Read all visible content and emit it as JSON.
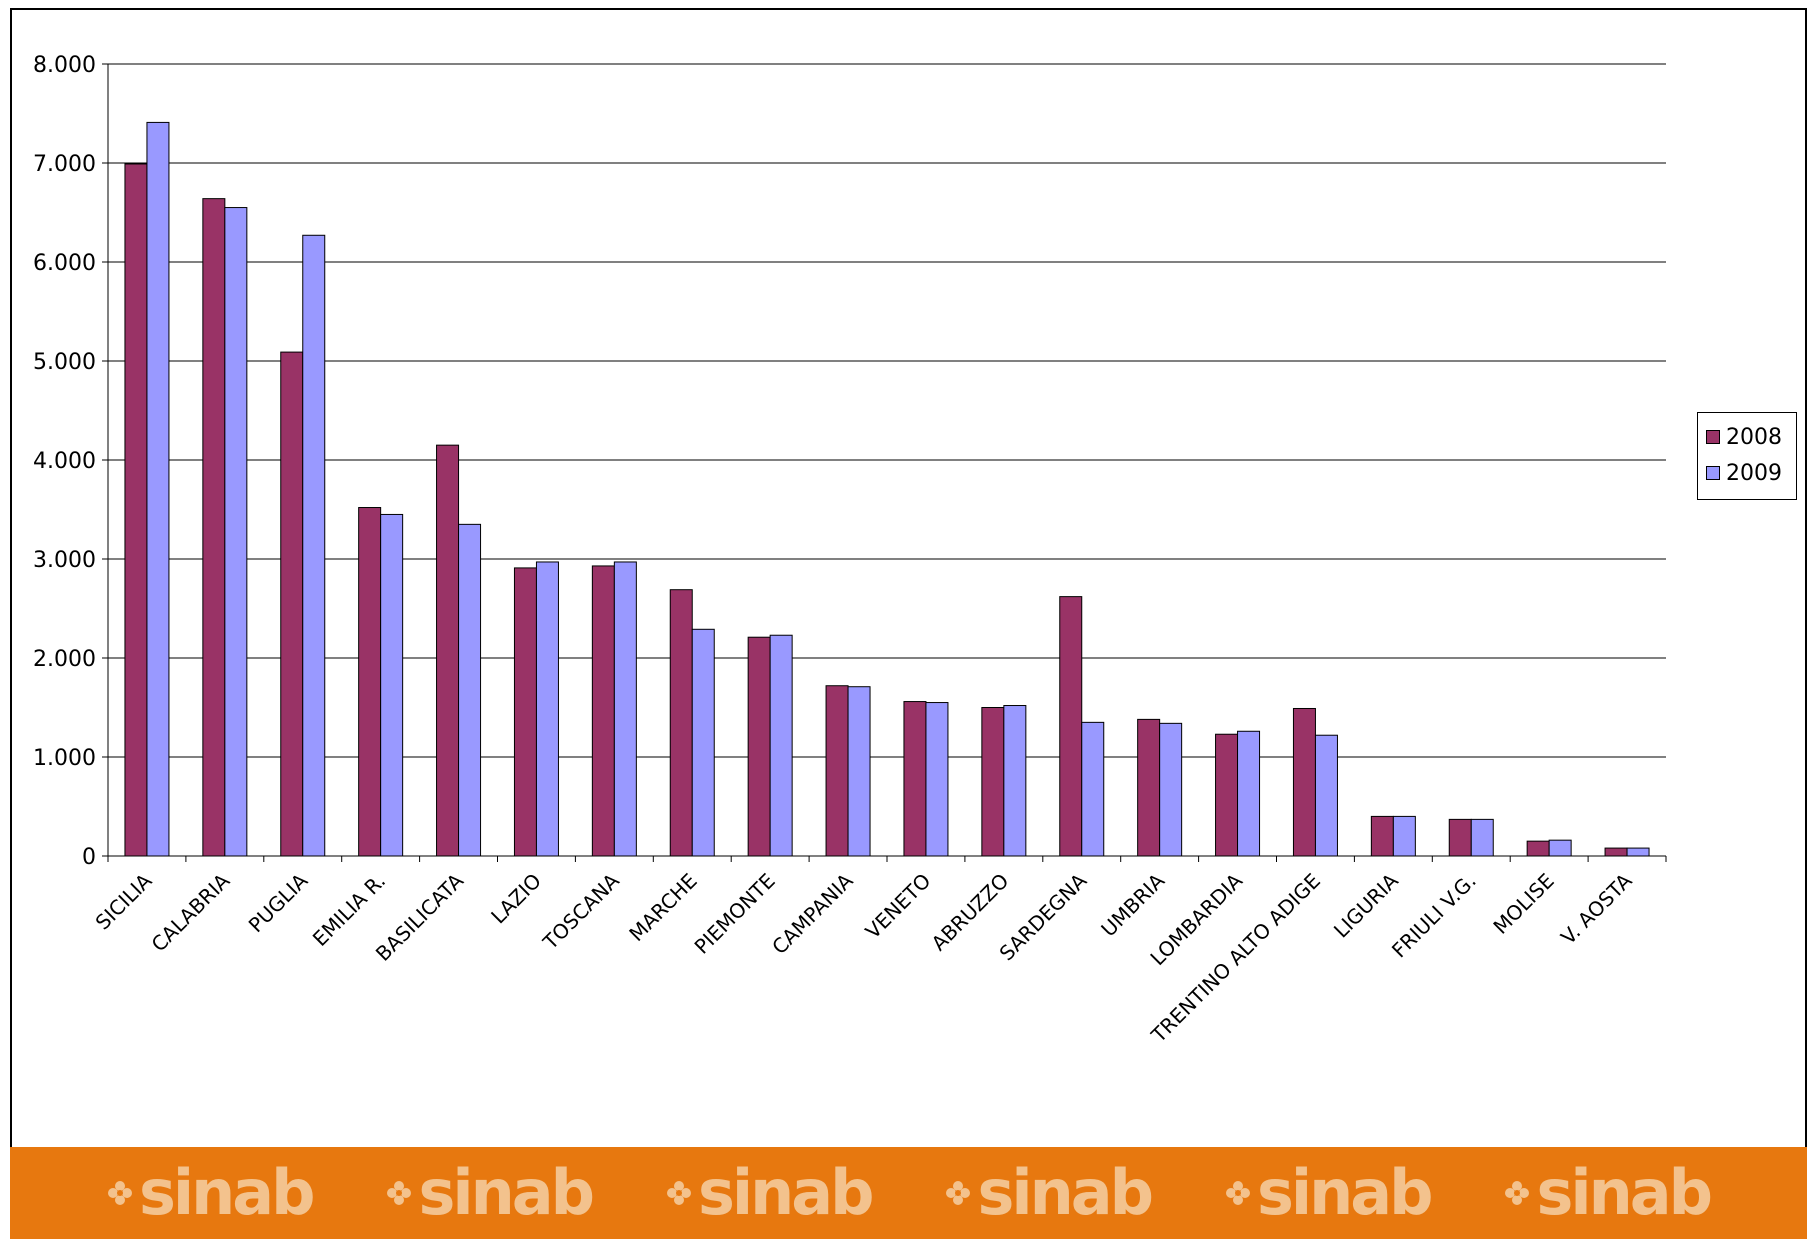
{
  "chart_data": {
    "type": "bar",
    "title": "",
    "xlabel": "",
    "ylabel": "",
    "ylim": [
      0,
      8000
    ],
    "yticks": [
      0,
      1000,
      2000,
      3000,
      4000,
      5000,
      6000,
      7000,
      8000
    ],
    "ytick_labels": [
      "0",
      "1.000",
      "2.000",
      "3.000",
      "4.000",
      "5.000",
      "6.000",
      "7.000",
      "8.000"
    ],
    "grid": "horizontal",
    "legend_position": "right",
    "categories": [
      "SICILIA",
      "CALABRIA",
      "PUGLIA",
      "EMILIA R.",
      "BASILICATA",
      "LAZIO",
      "TOSCANA",
      "MARCHE",
      "PIEMONTE",
      "CAMPANIA",
      "VENETO",
      "ABRUZZO",
      "SARDEGNA",
      "UMBRIA",
      "LOMBARDIA",
      "TRENTINO ALTO ADIGE",
      "LIGURIA",
      "FRIULI V.G.",
      "MOLISE",
      "V. AOSTA"
    ],
    "series": [
      {
        "name": "2008",
        "color": "#993366",
        "values": [
          6990,
          6640,
          5090,
          3520,
          4150,
          2910,
          2930,
          2690,
          2210,
          1720,
          1560,
          1500,
          2620,
          1380,
          1230,
          1490,
          400,
          370,
          150,
          80
        ]
      },
      {
        "name": "2009",
        "color": "#9999ff",
        "values": [
          7410,
          6550,
          6270,
          3450,
          3350,
          2970,
          2970,
          2290,
          2230,
          1710,
          1550,
          1520,
          1350,
          1340,
          1260,
          1220,
          400,
          370,
          160,
          80
        ]
      }
    ]
  },
  "banner": {
    "color": "#e7780f",
    "logos": [
      "sinab",
      "sinab",
      "sinab",
      "sinab",
      "sinab",
      "sinab"
    ]
  }
}
